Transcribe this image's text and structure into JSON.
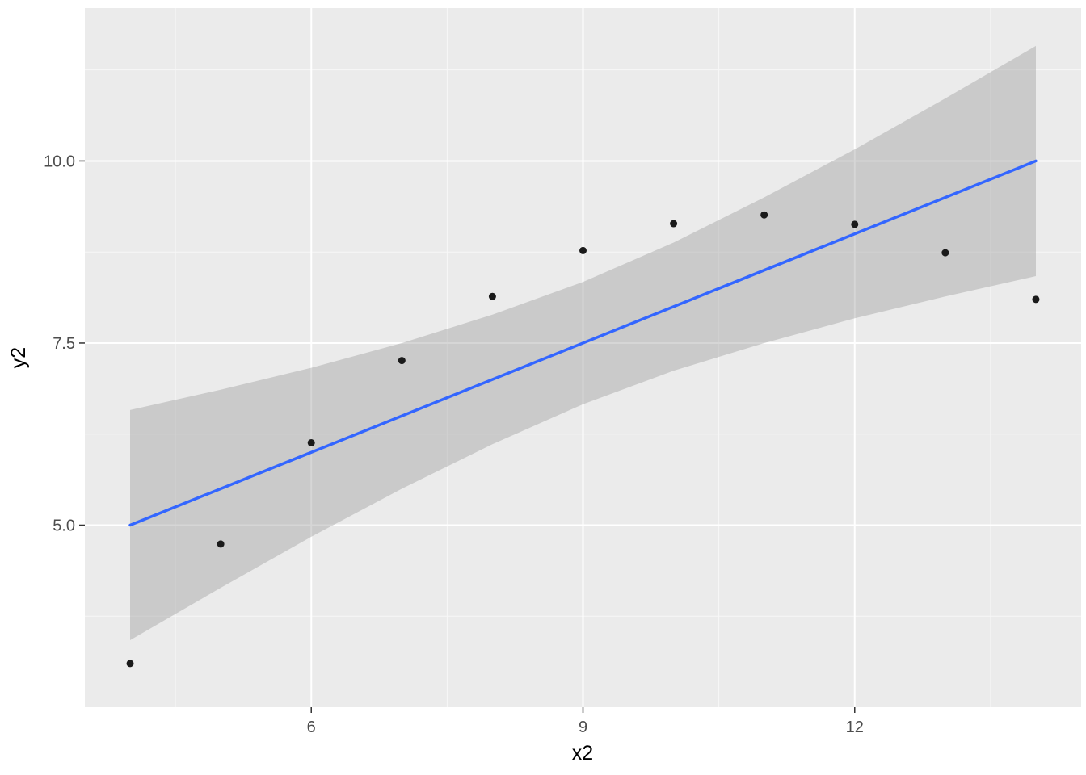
{
  "chart_data": {
    "type": "scatter",
    "title": "",
    "xlabel": "x2",
    "ylabel": "y2",
    "xlim": [
      3.5,
      14.5
    ],
    "ylim": [
      2.5,
      12.1
    ],
    "x_ticks": [
      6,
      9,
      12
    ],
    "x_tick_labels": [
      "6",
      "9",
      "12"
    ],
    "y_ticks": [
      5.0,
      7.5,
      10.0
    ],
    "y_tick_labels": [
      "5.0",
      "7.5",
      "10.0"
    ],
    "x_minor_gridlines": [
      4.5,
      7.5,
      10.5,
      13.5
    ],
    "y_minor_gridlines": [
      3.75,
      6.25,
      8.75,
      11.25
    ],
    "grid": "on",
    "legend": "none",
    "points": {
      "x": [
        4,
        5,
        6,
        7,
        8,
        9,
        10,
        11,
        12,
        13,
        14
      ],
      "y": [
        3.1,
        4.74,
        6.13,
        7.26,
        8.14,
        8.77,
        9.14,
        9.26,
        9.13,
        8.74,
        8.1
      ]
    },
    "regression_line": {
      "intercept": 3.0,
      "slope": 0.5,
      "x": [
        4,
        14
      ],
      "y": [
        5.0,
        10.0
      ]
    },
    "confidence_ribbon": {
      "x": [
        4,
        5,
        6,
        7,
        8,
        9,
        10,
        11,
        12,
        13,
        14
      ],
      "lower": [
        3.42,
        4.14,
        4.84,
        5.5,
        6.11,
        6.66,
        7.12,
        7.5,
        7.84,
        8.14,
        8.42
      ],
      "upper": [
        6.58,
        6.86,
        7.16,
        7.5,
        7.89,
        8.34,
        8.88,
        9.5,
        10.16,
        10.86,
        11.58
      ]
    },
    "colors": {
      "panel_background": "#EBEBEB",
      "grid_major": "#FFFFFF",
      "grid_minor": "#F7F7F7",
      "point": "#1A1A1A",
      "smooth_line": "#3366FF",
      "ribbon_fill": "#999999",
      "ribbon_opacity": 0.4,
      "tick_mark": "#333333",
      "tick_text": "#4D4D4D",
      "axis_title_text": "#000000",
      "figure_background": "#FFFFFF"
    }
  }
}
